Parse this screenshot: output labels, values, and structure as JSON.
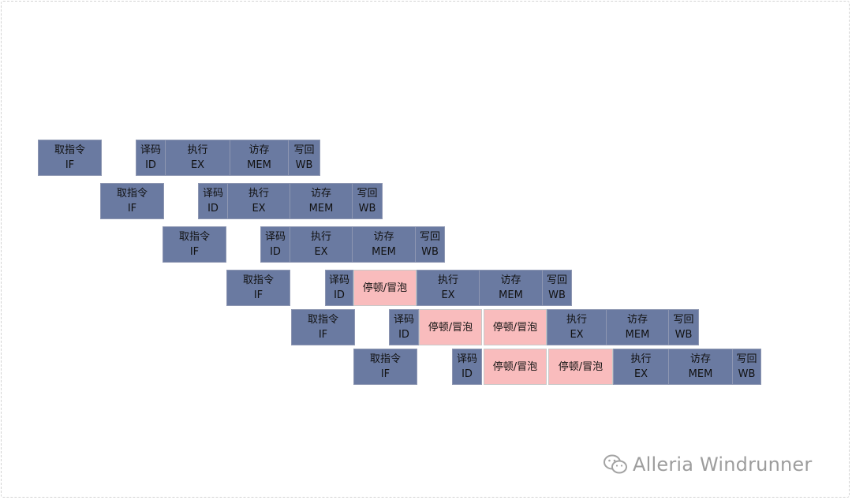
{
  "stage_labels": {
    "if": [
      "取指令",
      "IF"
    ],
    "id": [
      "译码",
      "ID"
    ],
    "ex": [
      "执行",
      "EX"
    ],
    "mem": [
      "访存",
      "MEM"
    ],
    "wb": [
      "写回",
      "WB"
    ],
    "stall": "停顿/冒泡"
  },
  "rows": [
    {
      "stages": [
        "if",
        "id",
        "ex",
        "mem",
        "wb"
      ]
    },
    {
      "stages": [
        "if",
        "id",
        "ex",
        "mem",
        "wb"
      ]
    },
    {
      "stages": [
        "if",
        "id",
        "ex",
        "mem",
        "wb"
      ]
    },
    {
      "stages": [
        "if",
        "id",
        "stall",
        "ex",
        "mem",
        "wb"
      ]
    },
    {
      "stages": [
        "if",
        "id",
        "stall",
        "stall",
        "ex",
        "mem",
        "wb"
      ]
    },
    {
      "stages": [
        "if",
        "id",
        "stall",
        "stall",
        "ex",
        "mem",
        "wb"
      ]
    }
  ],
  "watermark": {
    "text": "Alleria Windrunner",
    "icon": "wechat-icon"
  },
  "colors": {
    "stage": "#6a7aa1",
    "stall": "#f9bcbd",
    "text": "#111111"
  }
}
